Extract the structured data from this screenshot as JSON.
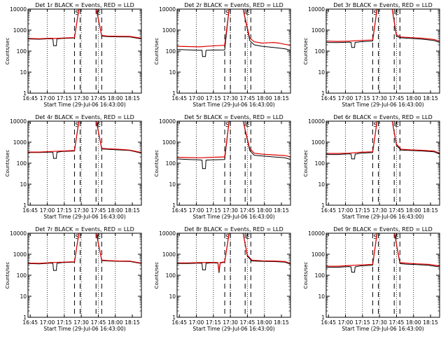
{
  "figure": {
    "x_tick_labels": [
      "16:45",
      "17:00",
      "17:15",
      "17:30",
      "17:45",
      "18:00",
      "18:15"
    ],
    "y_tick_labels": [
      "1",
      "10",
      "100",
      "1000",
      "10000"
    ],
    "xlabel": "Start Time (29-Jul-06 16:43:00)",
    "ylabel": "Counts/sec",
    "marker_labels": [
      "S",
      "E"
    ],
    "colors": {
      "events": "#000000",
      "lld": "#e00000",
      "frame": "#000000"
    }
  },
  "chart_data": [
    {
      "type": "line",
      "title": "Det 1r BLACK = Events, RED = LLD",
      "xlabel": "Start Time (29-Jul-06 16:43:00)",
      "ylabel": "Counts/sec",
      "x_range_minutes_after_16_43": [
        0,
        100
      ],
      "ylim": [
        1,
        10000
      ],
      "y_scale": "log",
      "markers_minutes": [
        41,
        46,
        60,
        65
      ],
      "series": [
        {
          "color": "#000000",
          "x": [
            0,
            10,
            20,
            22,
            22.5,
            25,
            25.5,
            30,
            41,
            45,
            50,
            55,
            60,
            65,
            70,
            80,
            90,
            100
          ],
          "values": [
            380,
            370,
            390,
            380,
            180,
            180,
            380,
            400,
            420,
            11000,
            11000,
            11000,
            11000,
            520,
            490,
            480,
            470,
            380
          ]
        },
        {
          "color": "#e00000",
          "x": [
            0,
            10,
            20,
            22,
            22.5,
            25,
            25.5,
            30,
            41,
            45,
            50,
            55,
            60,
            65,
            70,
            80,
            90,
            100
          ],
          "values": [
            400,
            390,
            410,
            400,
            400,
            400,
            400,
            420,
            440,
            11000,
            11000,
            11000,
            11000,
            560,
            520,
            510,
            500,
            410
          ]
        }
      ]
    },
    {
      "type": "line",
      "title": "Det 2r BLACK = Events, RED = LLD",
      "xlabel": "Start Time (29-Jul-06 16:43:00)",
      "ylabel": "Counts/sec",
      "x_range_minutes_after_16_43": [
        0,
        100
      ],
      "ylim": [
        1,
        10000
      ],
      "y_scale": "log",
      "markers_minutes": [
        42,
        47,
        60,
        65
      ],
      "series": [
        {
          "color": "#000000",
          "x": [
            0,
            10,
            20,
            22,
            22.5,
            25,
            25.5,
            30,
            42,
            46,
            52,
            58,
            64,
            68,
            75,
            85,
            95,
            100
          ],
          "values": [
            120,
            115,
            110,
            110,
            55,
            55,
            110,
            112,
            115,
            11000,
            11000,
            11000,
            320,
            200,
            170,
            150,
            130,
            110
          ]
        },
        {
          "color": "#e00000",
          "x": [
            0,
            10,
            20,
            30,
            42,
            46,
            52,
            58,
            64,
            68,
            75,
            85,
            90,
            95,
            100
          ],
          "values": [
            170,
            165,
            160,
            175,
            190,
            11000,
            11000,
            11000,
            420,
            280,
            240,
            260,
            240,
            210,
            190
          ]
        }
      ]
    },
    {
      "type": "line",
      "title": "Det 3r BLACK = Events, RED = LLD",
      "xlabel": "Start Time (29-Jul-06 16:43:00)",
      "ylabel": "Counts/sec",
      "x_range_minutes_after_16_43": [
        0,
        100
      ],
      "ylim": [
        1,
        10000
      ],
      "y_scale": "log",
      "markers_minutes": [
        41,
        46,
        60,
        65
      ],
      "series": [
        {
          "color": "#000000",
          "x": [
            0,
            10,
            20,
            22,
            22.5,
            25,
            25.5,
            30,
            41,
            45,
            52,
            58,
            62,
            66,
            75,
            85,
            95,
            100
          ],
          "values": [
            260,
            255,
            270,
            260,
            150,
            150,
            260,
            280,
            300,
            11000,
            11000,
            11000,
            500,
            430,
            400,
            370,
            320,
            260
          ]
        },
        {
          "color": "#e00000",
          "x": [
            0,
            10,
            20,
            30,
            41,
            45,
            52,
            58,
            62,
            66,
            75,
            85,
            95,
            100
          ],
          "values": [
            300,
            290,
            300,
            320,
            340,
            11000,
            11000,
            11000,
            600,
            470,
            440,
            410,
            360,
            300
          ]
        }
      ]
    },
    {
      "type": "line",
      "title": "Det 4r BLACK = Events, RED = LLD",
      "xlabel": "Start Time (29-Jul-06 16:43:00)",
      "ylabel": "Counts/sec",
      "x_range_minutes_after_16_43": [
        0,
        100
      ],
      "ylim": [
        1,
        10000
      ],
      "y_scale": "log",
      "markers_minutes": [
        41,
        46,
        60,
        65
      ],
      "series": [
        {
          "color": "#000000",
          "x": [
            0,
            10,
            20,
            22,
            22.5,
            25,
            25.5,
            30,
            41,
            45,
            50,
            55,
            60,
            65,
            70,
            80,
            90,
            100
          ],
          "values": [
            320,
            320,
            340,
            330,
            170,
            170,
            330,
            360,
            380,
            11000,
            11000,
            11000,
            11000,
            480,
            460,
            430,
            400,
            300
          ]
        },
        {
          "color": "#e00000",
          "x": [
            0,
            10,
            20,
            30,
            41,
            45,
            50,
            55,
            60,
            65,
            70,
            80,
            90,
            100
          ],
          "values": [
            340,
            340,
            360,
            380,
            400,
            11000,
            11000,
            11000,
            11000,
            510,
            490,
            460,
            420,
            320
          ]
        }
      ]
    },
    {
      "type": "line",
      "title": "Det 5r BLACK = Events, RED = LLD",
      "xlabel": "Start Time (29-Jul-06 16:43:00)",
      "ylabel": "Counts/sec",
      "x_range_minutes_after_16_43": [
        0,
        100
      ],
      "ylim": [
        1,
        10000
      ],
      "y_scale": "log",
      "markers_minutes": [
        42,
        47,
        60,
        65
      ],
      "series": [
        {
          "color": "#000000",
          "x": [
            0,
            10,
            20,
            22,
            22.5,
            25,
            25.5,
            30,
            42,
            46,
            52,
            58,
            64,
            68,
            75,
            85,
            95,
            100
          ],
          "values": [
            160,
            150,
            145,
            140,
            55,
            55,
            140,
            145,
            150,
            11000,
            11000,
            11000,
            400,
            240,
            220,
            200,
            180,
            150
          ]
        },
        {
          "color": "#e00000",
          "x": [
            0,
            10,
            20,
            30,
            42,
            46,
            52,
            58,
            64,
            68,
            75,
            85,
            95,
            100
          ],
          "values": [
            190,
            185,
            180,
            190,
            200,
            11000,
            11000,
            11000,
            500,
            300,
            270,
            250,
            230,
            200
          ]
        }
      ]
    },
    {
      "type": "line",
      "title": "Det 6r BLACK = Events, RED = LLD",
      "xlabel": "Start Time (29-Jul-06 16:43:00)",
      "ylabel": "Counts/sec",
      "x_range_minutes_after_16_43": [
        0,
        100
      ],
      "ylim": [
        1,
        10000
      ],
      "y_scale": "log",
      "markers_minutes": [
        41,
        46,
        60,
        65
      ],
      "series": [
        {
          "color": "#000000",
          "x": [
            0,
            10,
            20,
            22,
            22.5,
            25,
            25.5,
            30,
            41,
            45,
            52,
            58,
            62,
            66,
            75,
            85,
            95,
            100
          ],
          "values": [
            260,
            260,
            280,
            270,
            160,
            160,
            270,
            300,
            320,
            11000,
            11000,
            11000,
            700,
            420,
            400,
            380,
            350,
            270
          ]
        },
        {
          "color": "#e00000",
          "x": [
            0,
            10,
            20,
            30,
            41,
            45,
            52,
            58,
            62,
            66,
            75,
            85,
            95,
            100
          ],
          "values": [
            290,
            290,
            300,
            330,
            350,
            11000,
            11000,
            11000,
            800,
            460,
            430,
            410,
            380,
            300
          ]
        }
      ]
    },
    {
      "type": "line",
      "title": "Det 7r BLACK = Events, RED = LLD",
      "xlabel": "Start Time (29-Jul-06 16:43:00)",
      "ylabel": "Counts/sec",
      "x_range_minutes_after_16_43": [
        0,
        100
      ],
      "ylim": [
        1,
        10000
      ],
      "y_scale": "log",
      "markers_minutes": [
        41,
        46,
        60,
        65
      ],
      "series": [
        {
          "color": "#000000",
          "x": [
            0,
            10,
            20,
            22,
            22.5,
            25,
            25.5,
            30,
            41,
            45,
            50,
            55,
            60,
            65,
            70,
            80,
            90,
            100
          ],
          "values": [
            360,
            350,
            380,
            370,
            170,
            170,
            370,
            400,
            420,
            11000,
            11000,
            11000,
            11000,
            500,
            480,
            460,
            450,
            360
          ]
        },
        {
          "color": "#e00000",
          "x": [
            0,
            10,
            20,
            30,
            41,
            45,
            50,
            55,
            60,
            65,
            70,
            80,
            90,
            100
          ],
          "values": [
            380,
            370,
            400,
            420,
            440,
            11000,
            11000,
            11000,
            11000,
            530,
            500,
            480,
            470,
            380
          ]
        }
      ]
    },
    {
      "type": "line",
      "title": "Det 8r BLACK = Events, RED = LLD",
      "xlabel": "Start Time (29-Jul-06 16:43:00)",
      "ylabel": "Counts/sec",
      "x_range_minutes_after_16_43": [
        0,
        100
      ],
      "ylim": [
        1,
        10000
      ],
      "y_scale": "log",
      "markers_minutes": [
        42,
        47,
        60,
        65
      ],
      "series": [
        {
          "color": "#000000",
          "x": [
            0,
            10,
            20,
            22,
            22.5,
            25,
            25.5,
            30,
            36,
            37,
            38,
            42,
            46,
            52,
            58,
            62,
            66,
            75,
            85,
            95,
            100
          ],
          "values": [
            360,
            360,
            380,
            370,
            180,
            180,
            370,
            390,
            380,
            130,
            380,
            420,
            11000,
            11000,
            11000,
            800,
            480,
            460,
            450,
            420,
            340
          ]
        },
        {
          "color": "#e00000",
          "x": [
            0,
            10,
            20,
            30,
            36,
            37,
            38,
            42,
            46,
            52,
            58,
            62,
            66,
            75,
            85,
            95,
            100
          ],
          "values": [
            390,
            390,
            400,
            410,
            400,
            160,
            400,
            440,
            11000,
            11000,
            11000,
            900,
            520,
            490,
            480,
            450,
            360
          ]
        }
      ]
    },
    {
      "type": "line",
      "title": "Det 9r BLACK = Events, RED = LLD",
      "xlabel": "Start Time (29-Jul-06 16:43:00)",
      "ylabel": "Counts/sec",
      "x_range_minutes_after_16_43": [
        0,
        100
      ],
      "ylim": [
        1,
        10000
      ],
      "y_scale": "log",
      "markers_minutes": [
        41,
        46,
        60,
        65
      ],
      "series": [
        {
          "color": "#000000",
          "x": [
            0,
            10,
            20,
            22,
            22.5,
            25,
            25.5,
            30,
            41,
            45,
            50,
            55,
            60,
            65,
            70,
            80,
            90,
            100
          ],
          "values": [
            240,
            240,
            260,
            250,
            140,
            140,
            250,
            280,
            300,
            11000,
            11000,
            11000,
            11000,
            360,
            340,
            320,
            300,
            250
          ]
        },
        {
          "color": "#e00000",
          "x": [
            0,
            10,
            20,
            30,
            41,
            45,
            50,
            55,
            60,
            65,
            70,
            80,
            90,
            100
          ],
          "values": [
            270,
            270,
            290,
            310,
            330,
            11000,
            11000,
            11000,
            11000,
            400,
            380,
            350,
            330,
            280
          ]
        }
      ]
    }
  ]
}
